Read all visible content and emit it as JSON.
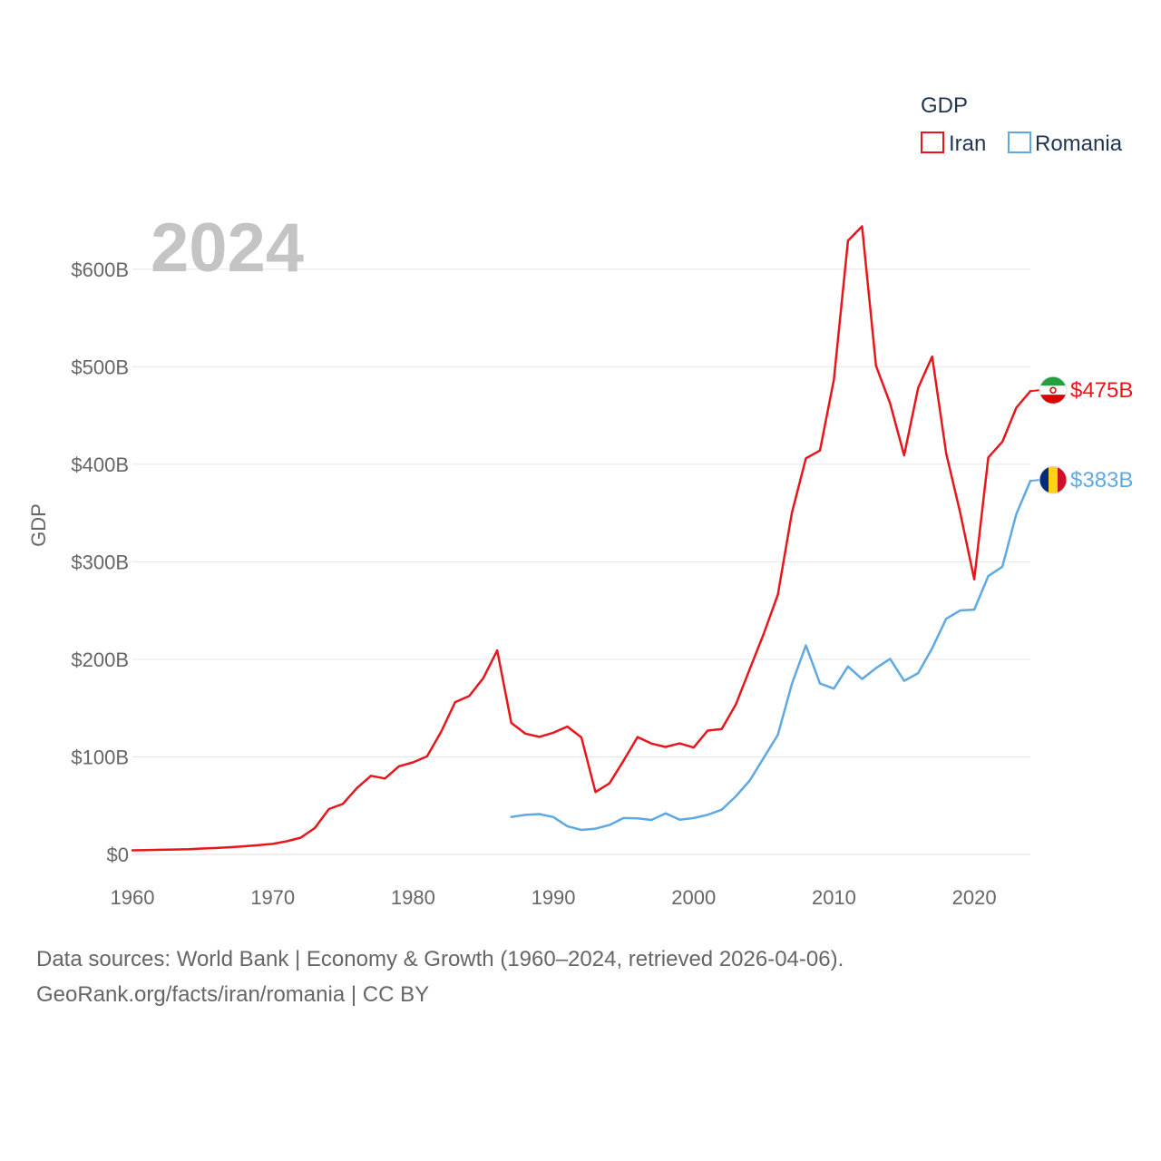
{
  "chart_data": {
    "type": "line",
    "year_label": "2024",
    "ylabel": "GDP",
    "xlabel": "",
    "xlim": [
      1960,
      2024
    ],
    "ylim": [
      0,
      650
    ],
    "y_unit": "billions USD",
    "x_ticks": [
      {
        "value": 1960,
        "label": "1960"
      },
      {
        "value": 1970,
        "label": "1970"
      },
      {
        "value": 1980,
        "label": "1980"
      },
      {
        "value": 1990,
        "label": "1990"
      },
      {
        "value": 2000,
        "label": "2000"
      },
      {
        "value": 2010,
        "label": "2010"
      },
      {
        "value": 2020,
        "label": "2020"
      }
    ],
    "y_ticks": [
      {
        "value": 0,
        "label": "$0"
      },
      {
        "value": 100,
        "label": "$100B"
      },
      {
        "value": 200,
        "label": "$200B"
      },
      {
        "value": 300,
        "label": "$300B"
      },
      {
        "value": 400,
        "label": "$400B"
      },
      {
        "value": 500,
        "label": "$500B"
      },
      {
        "value": 600,
        "label": "$600B"
      }
    ],
    "grid": true,
    "legend": {
      "title": "GDP",
      "position": "top-right"
    },
    "series": [
      {
        "name": "Iran",
        "color": "#e8161b",
        "end_label": "$475B",
        "flag": "iran-flag-icon",
        "x": [
          1960,
          1961,
          1962,
          1963,
          1964,
          1965,
          1966,
          1967,
          1968,
          1969,
          1970,
          1971,
          1972,
          1973,
          1974,
          1975,
          1976,
          1977,
          1978,
          1979,
          1980,
          1981,
          1982,
          1983,
          1984,
          1985,
          1986,
          1987,
          1988,
          1989,
          1990,
          1991,
          1992,
          1993,
          1994,
          1995,
          1996,
          1997,
          1998,
          1999,
          2000,
          2001,
          2002,
          2003,
          2004,
          2005,
          2006,
          2007,
          2008,
          2009,
          2010,
          2011,
          2012,
          2013,
          2014,
          2015,
          2016,
          2017,
          2018,
          2019,
          2020,
          2021,
          2022,
          2023,
          2024
        ],
        "values": [
          4.2,
          4.4,
          4.7,
          5.0,
          5.3,
          6.0,
          6.6,
          7.4,
          8.4,
          9.5,
          10.8,
          13.5,
          17.2,
          27.1,
          46.5,
          51.8,
          68.1,
          80.6,
          77.8,
          90.4,
          94.4,
          100.5,
          125.6,
          156.1,
          162.4,
          180.6,
          209.1,
          134.8,
          123.9,
          120.5,
          124.8,
          131.1,
          120.0,
          64.0,
          72.8,
          96.0,
          120.3,
          113.6,
          110.2,
          113.8,
          109.6,
          126.9,
          128.6,
          153.6,
          190.0,
          226.4,
          266.3,
          349.9,
          406.1,
          414.1,
          487.1,
          629.2,
          644.0,
          500.9,
          462.5,
          409.2,
          478.4,
          510.4,
          411.0,
          350.0,
          282.0,
          407.0,
          423.0,
          458.0,
          475.0
        ]
      },
      {
        "name": "Romania",
        "color": "#5ea9e3",
        "end_label": "$383B",
        "flag": "romania-flag-icon",
        "x": [
          1987,
          1988,
          1989,
          1990,
          1991,
          1992,
          1993,
          1994,
          1995,
          1996,
          1997,
          1998,
          1999,
          2000,
          2001,
          2002,
          2003,
          2004,
          2005,
          2006,
          2007,
          2008,
          2009,
          2010,
          2011,
          2012,
          2013,
          2014,
          2015,
          2016,
          2017,
          2018,
          2019,
          2020,
          2021,
          2022,
          2023,
          2024
        ],
        "values": [
          38.4,
          40.5,
          41.4,
          38.3,
          28.9,
          25.1,
          26.4,
          30.1,
          37.3,
          36.9,
          35.3,
          42.1,
          35.6,
          37.3,
          40.6,
          45.8,
          59.5,
          75.8,
          99.2,
          122.7,
          174.6,
          214.3,
          175.2,
          170.0,
          192.8,
          179.8,
          191.0,
          200.5,
          178.0,
          185.9,
          211.4,
          241.6,
          250.1,
          251.0,
          285.4,
          295.0,
          349.0,
          383.0
        ]
      }
    ]
  },
  "footer": {
    "line1": "Data sources: World Bank | Economy & Growth (1960–2024, retrieved 2026-04-06).",
    "line2": "GeoRank.org/facts/iran/romania | CC BY"
  }
}
